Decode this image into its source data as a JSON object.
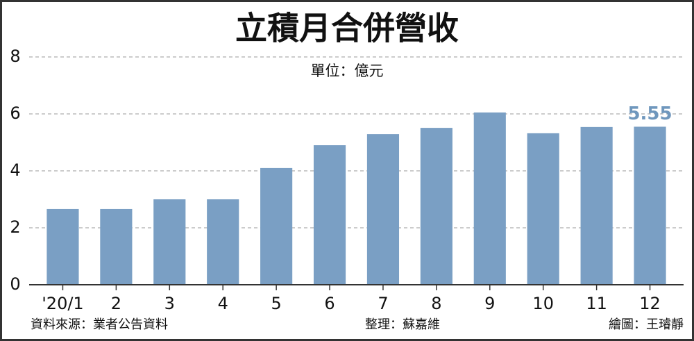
{
  "chart_data": {
    "type": "bar",
    "title": "立積月合併營收",
    "subtitle": "單位：億元",
    "categories": [
      "'20/1",
      "2",
      "3",
      "4",
      "5",
      "6",
      "7",
      "8",
      "9",
      "10",
      "11",
      "12"
    ],
    "values": [
      2.66,
      2.66,
      3.0,
      3.0,
      4.1,
      4.9,
      5.29,
      5.51,
      6.05,
      5.32,
      5.54,
      5.55
    ],
    "color": "#7a9fc4",
    "ylim": [
      0,
      8
    ],
    "yticks": [
      0,
      2,
      4,
      6,
      8
    ],
    "grid": true,
    "source": "資料來源：業者公告資料",
    "editor": "整理：蘇嘉維",
    "illustrator": "繪圖：王璿靜"
  }
}
